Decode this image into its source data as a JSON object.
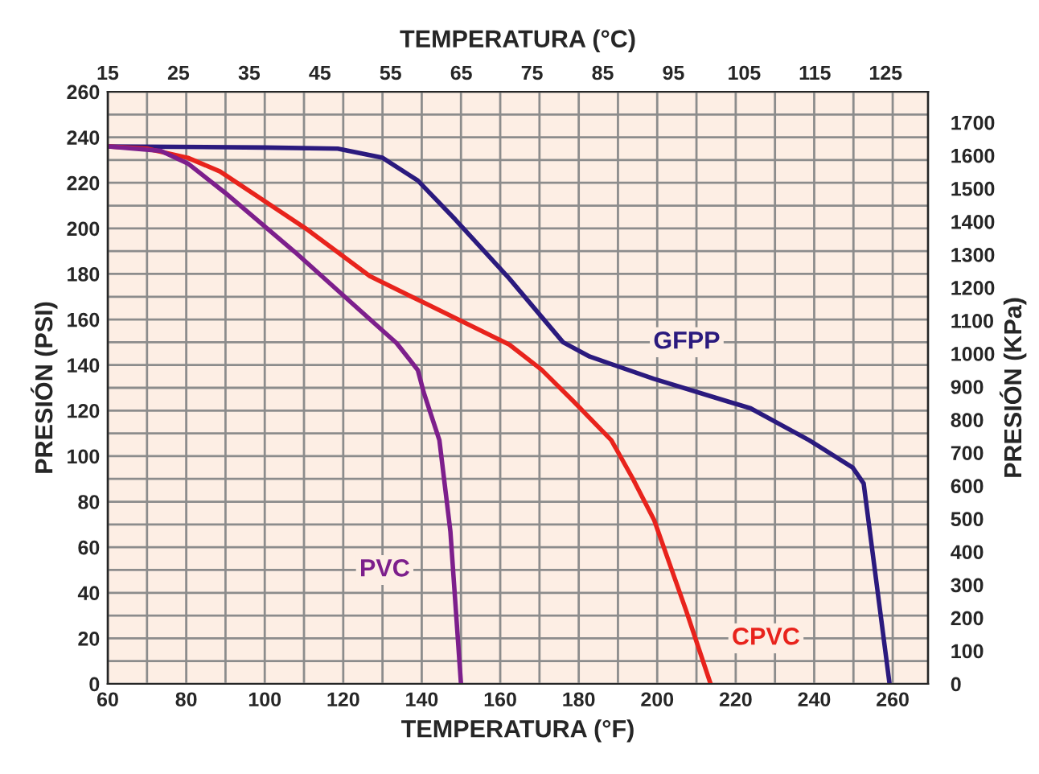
{
  "chart_data": {
    "type": "line",
    "xlabel": "TEMPERATURA (°F)",
    "ylabel": "PRESIÓN (PSI)",
    "y2label": "PRESIÓN (KPa)",
    "x2label": "TEMPERATURA (°C)",
    "xlim": [
      60,
      269
    ],
    "ylim": [
      0,
      260
    ],
    "y2lim": [
      0,
      1793
    ],
    "x2lim": [
      15,
      131
    ],
    "xticks": [
      60,
      {
        "value": 70,
        "label": null
      },
      80,
      {
        "value": 90,
        "label": null
      },
      100,
      {
        "value": 110,
        "label": null
      },
      120,
      {
        "value": 130,
        "label": null
      },
      140,
      {
        "value": 150,
        "label": null
      },
      160,
      {
        "value": 170,
        "label": null
      },
      180,
      {
        "value": 190,
        "label": null
      },
      200,
      {
        "value": 210,
        "label": null
      },
      220,
      {
        "value": 230,
        "label": null
      },
      240,
      {
        "value": 250,
        "label": null
      },
      260
    ],
    "yticks": [
      0,
      {
        "value": 10,
        "label": null
      },
      20,
      {
        "value": 30,
        "label": null
      },
      40,
      {
        "value": 50,
        "label": null
      },
      60,
      {
        "value": 70,
        "label": null
      },
      80,
      {
        "value": 90,
        "label": null
      },
      100,
      {
        "value": 110,
        "label": null
      },
      120,
      {
        "value": 130,
        "label": null
      },
      140,
      {
        "value": 150,
        "label": null
      },
      160,
      {
        "value": 170,
        "label": null
      },
      180,
      {
        "value": 190,
        "label": null
      },
      200,
      {
        "value": 210,
        "label": null
      },
      220,
      {
        "value": 230,
        "label": null
      },
      240,
      {
        "value": 250,
        "label": null
      },
      260
    ],
    "y2ticks": [
      0,
      100,
      200,
      300,
      400,
      500,
      600,
      700,
      800,
      900,
      1000,
      1100,
      1200,
      1300,
      1400,
      1500,
      1600,
      1700
    ],
    "x2ticks": [
      15,
      25,
      35,
      45,
      55,
      65,
      75,
      85,
      95,
      105,
      115,
      125
    ],
    "grid": true,
    "legend": false,
    "marker": "none",
    "line_style": "solid",
    "series": [
      {
        "name": "GFPP",
        "color": "#2b1a7e",
        "x": [
          60,
          100,
          118.6,
          130,
          139,
          148.5,
          162.3,
          176,
          182.8,
          199,
          218,
          223.8,
          238.7,
          249.8,
          252.6,
          259.2
        ],
        "values": [
          236,
          235.5,
          235,
          231,
          221,
          204,
          178,
          150,
          143.7,
          134,
          124,
          121,
          107,
          95,
          88,
          0
        ]
      },
      {
        "name": "CPVC",
        "color": "#e8231c",
        "x": [
          60,
          70,
          80.4,
          88.6,
          110.4,
          126.8,
          140.4,
          162.3,
          170.5,
          178.7,
          188.3,
          193.6,
          199.2,
          207.4,
          213.6
        ],
        "values": [
          236,
          235,
          231,
          225,
          200,
          179,
          167.5,
          149,
          138,
          124,
          107,
          90.7,
          72,
          32,
          0
        ]
      },
      {
        "name": "PVC",
        "color": "#7d1f8c",
        "x": [
          60,
          73.5,
          80.4,
          90,
          107.7,
          121.4,
          133.6,
          139,
          140.5,
          144.5,
          147.3,
          150
        ],
        "values": [
          236,
          234,
          228.5,
          215.5,
          189.6,
          168.4,
          149.6,
          137.8,
          128,
          107,
          67,
          0
        ]
      }
    ]
  }
}
